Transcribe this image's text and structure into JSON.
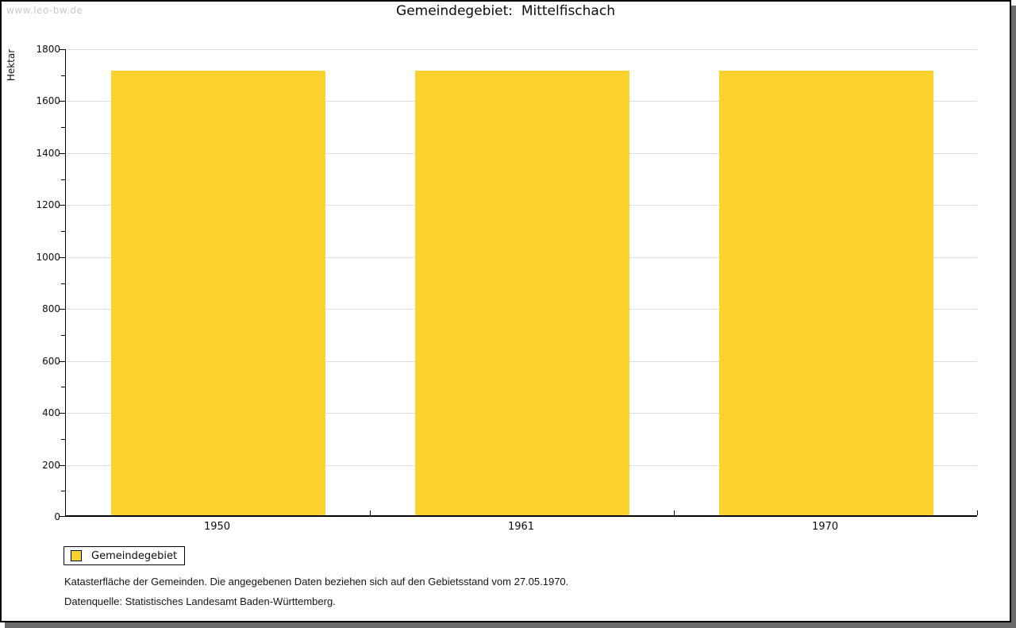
{
  "watermark": "www.leo-bw.de",
  "title": "Gemeindegebiet:  Mittelfischach",
  "legend": {
    "label": "Gemeindegebiet",
    "swatch_color": "#FCD32D"
  },
  "footnotes": [
    "Katasterfläche der Gemeinden. Die angegebenen Daten beziehen sich auf den Gebietsstand vom 27.05.1970.",
    "Datenquelle: Statistisches Landesamt Baden-Württemberg."
  ],
  "colors": {
    "bar": "#FCD32D",
    "grid": "#DDDDDD",
    "axis": "#000000",
    "watermark": "#C9C9C9",
    "frame_shadow": "#6B6B6B"
  },
  "chart_data": {
    "type": "bar",
    "title": "Gemeindegebiet: Mittelfischach",
    "categories": [
      "1950",
      "1961",
      "1970"
    ],
    "series": [
      {
        "name": "Gemeindegebiet",
        "values": [
          1712,
          1712,
          1712
        ]
      }
    ],
    "xlabel": "",
    "ylabel": "Hektar",
    "ylim": [
      0,
      1800
    ],
    "y_major_step": 200,
    "y_minor_step": 100,
    "grid": true,
    "legend_position": "bottom-left",
    "bar_color": "#FCD32D"
  }
}
